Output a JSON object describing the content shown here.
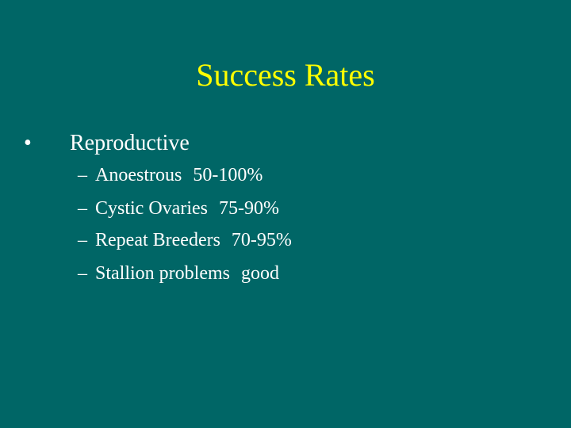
{
  "title": "Success Rates",
  "bullets": [
    {
      "text": "Reproductive",
      "items": [
        {
          "label": "Anoestrous",
          "value": "50-100%"
        },
        {
          "label": "Cystic Ovaries",
          "value": "75-90%"
        },
        {
          "label": "Repeat Breeders",
          "value": "70-95%"
        },
        {
          "label": "Stallion problems",
          "value": "good"
        }
      ]
    }
  ]
}
